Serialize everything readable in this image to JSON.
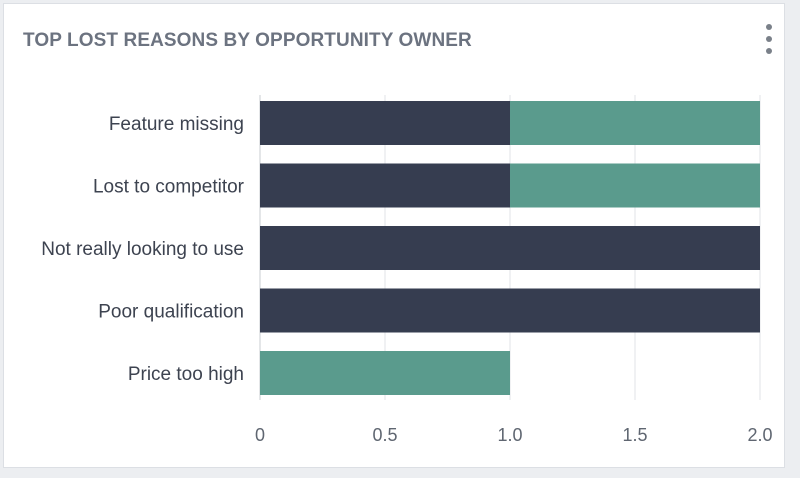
{
  "widget": {
    "title": "TOP LOST REASONS BY OPPORTUNITY OWNER",
    "menu_icon": "vertical-ellipsis-icon"
  },
  "chart_data": {
    "type": "bar",
    "orientation": "horizontal",
    "stacked": true,
    "title": "TOP LOST REASONS BY OPPORTUNITY OWNER",
    "xlabel": "",
    "ylabel": "",
    "categories": [
      "Feature missing",
      "Lost to competitor",
      "Not really looking to use",
      "Poor qualification",
      "Price too high"
    ],
    "series": [
      {
        "color": "#363d50",
        "values": [
          1,
          1,
          2,
          2,
          0
        ]
      },
      {
        "color": "#5a9b8d",
        "values": [
          1,
          1,
          0,
          0,
          1
        ]
      }
    ],
    "xlim": [
      0,
      2
    ],
    "xticks": [
      "0",
      "0.5",
      "1.0",
      "1.5",
      "2.0"
    ],
    "grid": true,
    "legend": "none"
  }
}
